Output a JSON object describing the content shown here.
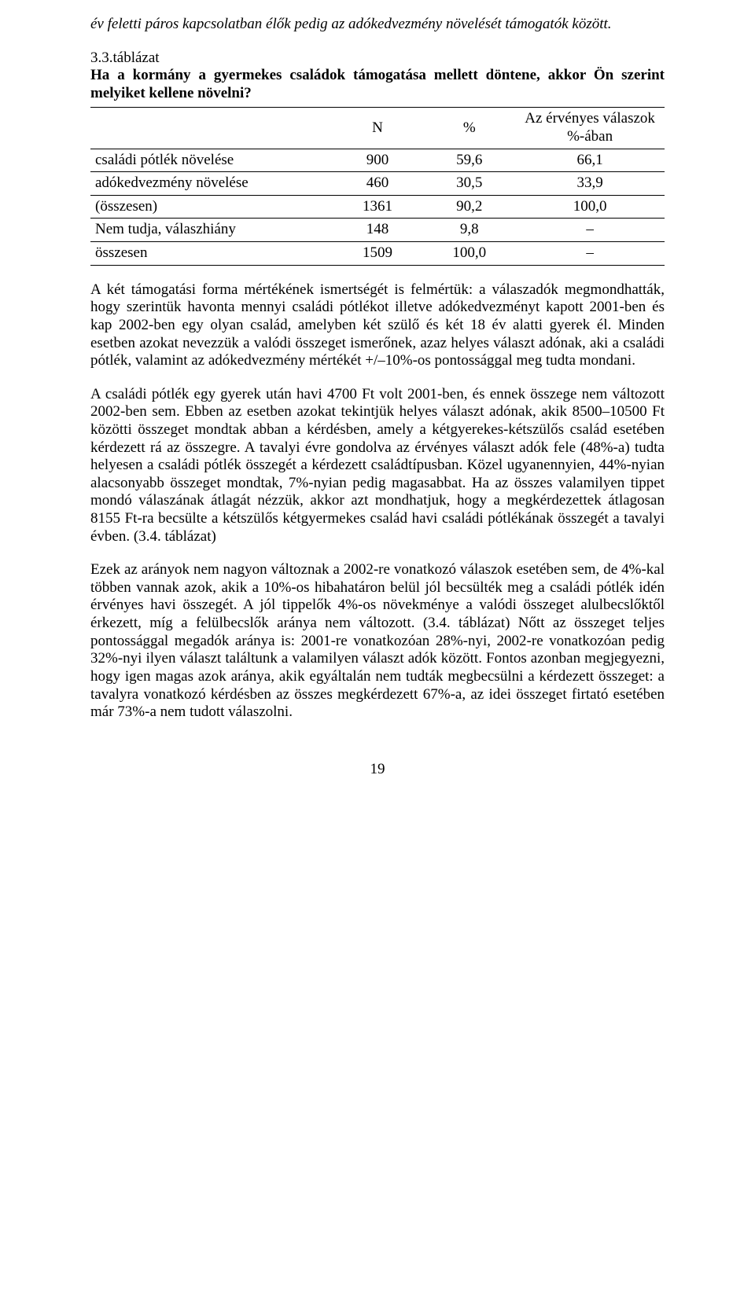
{
  "intro_italic": "év feletti páros kapcsolatban élők pedig az adókedvezmény növelését támogatók között.",
  "table_label": "3.3.táblázat",
  "table_title": "Ha a kormány a gyermekes családok támogatása mellett döntene, akkor Ön szerint melyiket kellene növelni?",
  "table": {
    "headers": {
      "c0": "",
      "c1": "N",
      "c2": "%",
      "c3": "Az érvényes válaszok %-ában"
    },
    "rows": [
      {
        "label": "családi pótlék növelése",
        "n": "900",
        "pct": "59,6",
        "valid": "66,1"
      },
      {
        "label": "adókedvezmény növelése",
        "n": "460",
        "pct": "30,5",
        "valid": "33,9"
      },
      {
        "label": "(összesen)",
        "n": "1361",
        "pct": "90,2",
        "valid": "100,0"
      },
      {
        "label": "Nem tudja, válaszhiány",
        "n": "148",
        "pct": "9,8",
        "valid": "–"
      },
      {
        "label": "összesen",
        "n": "1509",
        "pct": "100,0",
        "valid": "–"
      }
    ],
    "col_widths": [
      "42%",
      "16%",
      "16%",
      "26%"
    ]
  },
  "p1": "A két támogatási forma mértékének ismertségét is felmértük: a válaszadók megmondhatták, hogy szerintük havonta mennyi családi pótlékot illetve adókedvezményt kapott 2001-ben és kap 2002-ben egy olyan család, amelyben két szülő és két 18 év alatti gyerek él. Minden esetben azokat nevezzük a valódi összeget ismerőnek, azaz helyes választ adónak, aki a családi pótlék, valamint az adókedvezmény mértékét +/–10%-os pontossággal meg tudta mondani.",
  "p2": "A családi pótlék egy gyerek után havi 4700 Ft volt 2001-ben, és ennek összege nem változott 2002-ben sem. Ebben az esetben azokat tekintjük helyes választ adónak, akik 8500–10500 Ft közötti összeget mondtak abban a kérdésben, amely a kétgyerekes-kétszülős család esetében kérdezett rá az összegre. A tavalyi évre gondolva az érvényes választ adók fele (48%-a) tudta helyesen a családi pótlék összegét a kérdezett családtípusban. Közel ugyanennyien, 44%-nyian alacsonyabb összeget mondtak, 7%-nyian pedig magasabbat. Ha az összes valamilyen tippet mondó válaszának átlagát nézzük, akkor azt mondhatjuk, hogy a megkérdezettek átlagosan 8155 Ft-ra becsülte a kétszülős kétgyermekes család havi családi pótlékának összegét a tavalyi évben. (3.4. táblázat)",
  "p3": "Ezek az arányok nem nagyon változnak a 2002-re vonatkozó válaszok esetében sem, de 4%-kal többen vannak azok, akik a 10%-os hibahatáron belül jól becsülték meg a családi pótlék idén érvényes havi összegét. A jól tippelők 4%-os növekménye a valódi összeget alulbecslőktől érkezett, míg a felülbecslők aránya nem változott. (3.4. táblázat) Nőtt az összeget teljes pontossággal megadók aránya is: 2001-re vonatkozóan 28%-nyi, 2002-re vonatkozóan pedig 32%-nyi ilyen választ találtunk a valamilyen választ adók között. Fontos azonban megjegyezni, hogy igen magas azok aránya, akik egyáltalán nem tudták megbecsülni a kérdezett összeget: a tavalyra vonatkozó kérdésben az összes megkérdezett 67%-a, az idei összeget firtató esetében már 73%-a nem tudott válaszolni.",
  "page_number": "19"
}
